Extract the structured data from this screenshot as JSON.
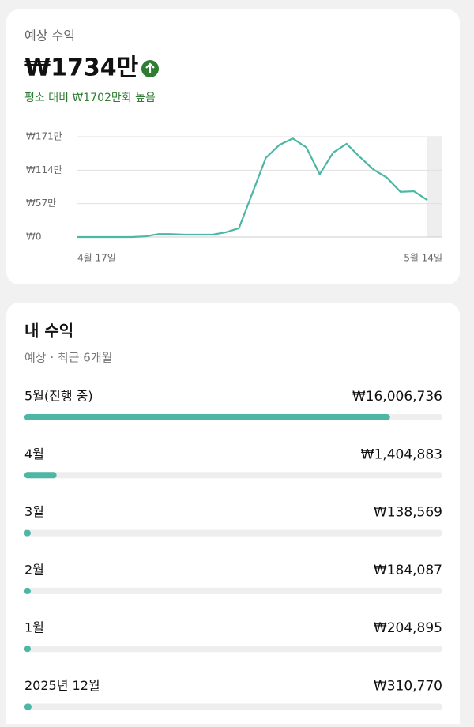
{
  "forecast": {
    "label": "예상 수익",
    "amount": "₩1734만",
    "comparison": "평소 대비 ₩1702만회 높음",
    "chart_data": {
      "type": "line",
      "color": "#4db6a4",
      "categories": [
        "4월 17일",
        null,
        null,
        null,
        null,
        null,
        null,
        null,
        null,
        null,
        null,
        null,
        null,
        null,
        null,
        null,
        null,
        null,
        null,
        null,
        null,
        null,
        null,
        null,
        null,
        null,
        "5월 14일"
      ],
      "values": [
        0,
        0,
        0,
        0,
        0,
        1,
        5,
        5,
        4,
        4,
        4,
        8,
        15,
        75,
        135,
        157,
        168,
        153,
        107,
        144,
        159,
        136,
        115,
        101,
        77,
        78,
        63
      ],
      "ylim": [
        0,
        171
      ],
      "yticks": [
        {
          "value": 0,
          "label": "₩0"
        },
        {
          "value": 57,
          "label": "₩57만"
        },
        {
          "value": 114,
          "label": "₩114만"
        },
        {
          "value": 171,
          "label": "₩171만"
        }
      ],
      "grid": true
    }
  },
  "earnings": {
    "title": "내 수익",
    "subtitle": "예상 · 최근 6개월",
    "chart_data": {
      "type": "bar",
      "color": "#4db6a4",
      "xlim": [
        0,
        18300000
      ],
      "categories": [
        "5월(진행 중)",
        "4월",
        "3월",
        "2월",
        "1월",
        "2025년 12월"
      ],
      "values": [
        16006736,
        1404883,
        138569,
        184087,
        204895,
        310770
      ],
      "value_labels": [
        "₩16,006,736",
        "₩1,404,883",
        "₩138,569",
        "₩184,087",
        "₩204,895",
        "₩310,770"
      ]
    }
  }
}
